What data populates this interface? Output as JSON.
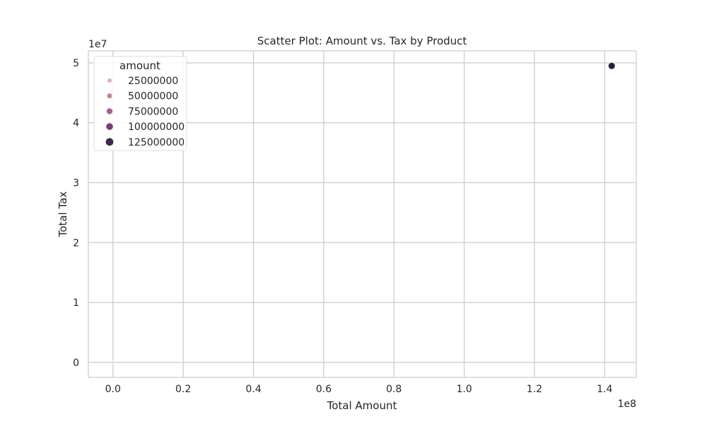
{
  "chart_data": {
    "type": "scatter",
    "title": "Scatter Plot: Amount vs. Tax by Product",
    "xlabel": "Total Amount",
    "ylabel": "Total Tax",
    "x_offset_label": "1e8",
    "y_offset_label": "1e7",
    "xlim": [
      -7000000,
      149000000
    ],
    "ylim": [
      -2500000,
      52000000
    ],
    "x_ticks": [
      0,
      20000000,
      40000000,
      60000000,
      80000000,
      100000000,
      120000000,
      140000000
    ],
    "x_tick_labels": [
      "0.0",
      "0.2",
      "0.4",
      "0.6",
      "0.8",
      "1.0",
      "1.2",
      "1.4"
    ],
    "y_ticks": [
      0,
      10000000,
      20000000,
      30000000,
      40000000,
      50000000
    ],
    "y_tick_labels": [
      "0",
      "1",
      "2",
      "3",
      "4",
      "5"
    ],
    "grid": true,
    "legend": {
      "title": "amount",
      "placement": "top-left",
      "entries": [
        {
          "label": "25000000",
          "value": 25000000,
          "color": "#e3aeb4"
        },
        {
          "label": "50000000",
          "value": 50000000,
          "color": "#c98299"
        },
        {
          "label": "75000000",
          "value": 75000000,
          "color": "#a55f8f"
        },
        {
          "label": "100000000",
          "value": 100000000,
          "color": "#76406f"
        },
        {
          "label": "125000000",
          "value": 125000000,
          "color": "#42284a"
        }
      ]
    },
    "points": [
      {
        "x": 0,
        "y": 0,
        "color": "#f2d7d3"
      },
      {
        "x": 142000000,
        "y": 49500000,
        "color": "#2d1e3e"
      }
    ]
  }
}
